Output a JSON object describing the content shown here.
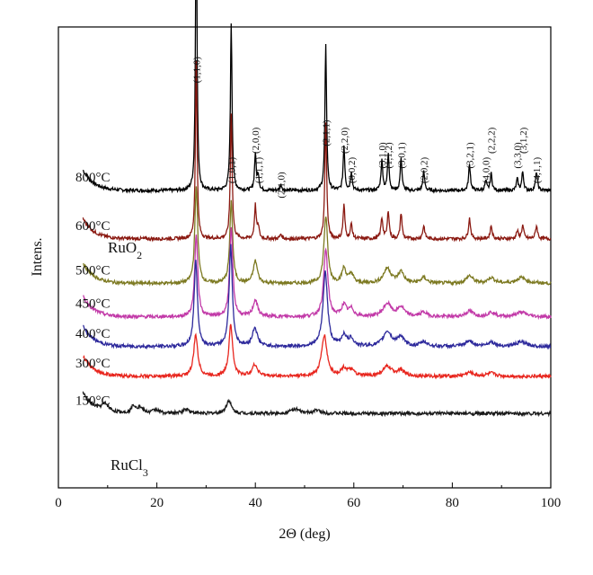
{
  "chart_data": {
    "type": "line",
    "xlabel": "2Θ (deg)",
    "ylabel": "Intens.",
    "xlim": [
      0,
      100
    ],
    "xticks": [
      0,
      20,
      40,
      60,
      80,
      100
    ],
    "xtick_labels": [
      "0",
      "20",
      "40",
      "60",
      "80",
      "100"
    ],
    "grid": false,
    "legend": "none",
    "series": [
      {
        "name": "800°C",
        "color": "#000000",
        "baseline": 8.0,
        "peaks": [
          [
            28.0,
            8.0,
            0.18
          ],
          [
            35.1,
            4.5,
            0.2
          ],
          [
            40.0,
            1.0,
            0.2
          ],
          [
            40.6,
            0.4,
            0.2
          ],
          [
            45.2,
            0.15,
            0.25
          ],
          [
            54.3,
            3.9,
            0.2
          ],
          [
            58.0,
            1.2,
            0.2
          ],
          [
            59.5,
            0.5,
            0.2
          ],
          [
            65.7,
            0.8,
            0.22
          ],
          [
            67.0,
            1.0,
            0.2
          ],
          [
            69.6,
            0.9,
            0.2
          ],
          [
            74.2,
            0.5,
            0.22
          ],
          [
            83.5,
            0.7,
            0.22
          ],
          [
            86.8,
            0.25,
            0.22
          ],
          [
            87.9,
            0.45,
            0.22
          ],
          [
            93.2,
            0.3,
            0.22
          ],
          [
            94.3,
            0.5,
            0.22
          ],
          [
            97.1,
            0.5,
            0.22
          ]
        ]
      },
      {
        "name": "600°C",
        "color": "#8b1a12",
        "baseline": 6.7,
        "peaks": [
          [
            28.0,
            4.8,
            0.2
          ],
          [
            35.1,
            3.4,
            0.22
          ],
          [
            40.0,
            0.9,
            0.22
          ],
          [
            40.6,
            0.3,
            0.22
          ],
          [
            45.2,
            0.12,
            0.25
          ],
          [
            54.3,
            3.1,
            0.22
          ],
          [
            58.0,
            0.9,
            0.22
          ],
          [
            59.5,
            0.4,
            0.22
          ],
          [
            65.7,
            0.55,
            0.25
          ],
          [
            67.0,
            0.75,
            0.22
          ],
          [
            69.6,
            0.7,
            0.22
          ],
          [
            74.2,
            0.35,
            0.25
          ],
          [
            83.5,
            0.55,
            0.25
          ],
          [
            87.9,
            0.35,
            0.25
          ],
          [
            93.2,
            0.2,
            0.25
          ],
          [
            94.3,
            0.35,
            0.25
          ],
          [
            97.1,
            0.35,
            0.25
          ]
        ]
      },
      {
        "name": "500°C",
        "color": "#7d7a22",
        "baseline": 5.5,
        "peaks": [
          [
            28.0,
            2.6,
            0.35
          ],
          [
            35.1,
            2.2,
            0.35
          ],
          [
            40.0,
            0.6,
            0.5
          ],
          [
            54.3,
            1.8,
            0.45
          ],
          [
            58.0,
            0.4,
            0.5
          ],
          [
            59.5,
            0.25,
            0.5
          ],
          [
            66.8,
            0.4,
            0.9
          ],
          [
            69.6,
            0.3,
            0.7
          ],
          [
            74.2,
            0.15,
            0.7
          ],
          [
            83.5,
            0.2,
            0.8
          ],
          [
            87.9,
            0.15,
            0.8
          ],
          [
            94.0,
            0.15,
            1.2
          ]
        ]
      },
      {
        "name": "450°C",
        "color": "#c23aa8",
        "baseline": 4.6,
        "peaks": [
          [
            28.0,
            2.2,
            0.38
          ],
          [
            35.1,
            2.4,
            0.38
          ],
          [
            40.0,
            0.45,
            0.55
          ],
          [
            54.3,
            1.8,
            0.5
          ],
          [
            58.0,
            0.3,
            0.6
          ],
          [
            59.5,
            0.2,
            0.6
          ],
          [
            66.8,
            0.35,
            1.0
          ],
          [
            69.6,
            0.25,
            0.8
          ],
          [
            74.2,
            0.12,
            0.8
          ],
          [
            83.5,
            0.15,
            0.9
          ],
          [
            87.9,
            0.12,
            0.9
          ],
          [
            94.0,
            0.12,
            1.3
          ]
        ]
      },
      {
        "name": "400°C",
        "color": "#2e2a9c",
        "baseline": 3.8,
        "peaks": [
          [
            27.9,
            2.3,
            0.4
          ],
          [
            35.0,
            2.7,
            0.4
          ],
          [
            39.9,
            0.5,
            0.6
          ],
          [
            54.2,
            2.0,
            0.55
          ],
          [
            58.0,
            0.3,
            0.6
          ],
          [
            59.5,
            0.2,
            0.6
          ],
          [
            66.8,
            0.4,
            1.0
          ],
          [
            69.5,
            0.25,
            0.8
          ],
          [
            74.2,
            0.12,
            0.8
          ],
          [
            83.5,
            0.15,
            0.9
          ],
          [
            87.9,
            0.12,
            0.9
          ],
          [
            94.0,
            0.12,
            1.3
          ]
        ]
      },
      {
        "name": "300°C",
        "color": "#e8261e",
        "baseline": 3.0,
        "peaks": [
          [
            27.9,
            1.1,
            0.5
          ],
          [
            35.0,
            1.4,
            0.45
          ],
          [
            39.9,
            0.3,
            0.7
          ],
          [
            54.0,
            1.1,
            0.65
          ],
          [
            58.0,
            0.2,
            0.7
          ],
          [
            59.5,
            0.15,
            0.7
          ],
          [
            66.8,
            0.25,
            1.1
          ],
          [
            69.5,
            0.15,
            0.9
          ],
          [
            83.5,
            0.1,
            1.0
          ],
          [
            87.9,
            0.08,
            1.0
          ]
        ]
      },
      {
        "name": "150°C",
        "color": "#1a1a1a",
        "baseline": 2.0,
        "peaks": [
          [
            9.5,
            0.2,
            0.9
          ],
          [
            15.3,
            0.2,
            0.6
          ],
          [
            16.6,
            0.15,
            0.6
          ],
          [
            19.8,
            0.1,
            0.8
          ],
          [
            26.0,
            0.12,
            0.8
          ],
          [
            34.6,
            0.35,
            0.6
          ],
          [
            48.0,
            0.12,
            1.0
          ],
          [
            52.5,
            0.08,
            1.0
          ]
        ]
      }
    ],
    "phase_labels": [
      "RuO2",
      "RuCl3"
    ],
    "peak_labels": [
      "(1,1,0)",
      "(1,0,1)",
      "(2,0,0)",
      "(1,1,1)",
      "(2,1,0)",
      "(2,1,1)",
      "(2,2,0)",
      "(0,0,2)",
      "(3,1,0)",
      "(1,1,2)",
      "(3,0,1)",
      "(2,0,2)",
      "(3,2,1)",
      "(4,0,0)",
      "(2,2,2)",
      "(3,3,0)",
      "(3,1,2)",
      "(4,1,1)"
    ],
    "peak_label_x": [
      28.0,
      35.1,
      40.0,
      40.6,
      45.2,
      54.3,
      58.0,
      59.5,
      65.7,
      67.0,
      69.6,
      74.2,
      83.5,
      86.8,
      87.9,
      93.2,
      94.3,
      97.1
    ],
    "peak_label_y": [
      11.6,
      8.9,
      9.7,
      8.9,
      8.5,
      9.9,
      9.7,
      8.9,
      9.3,
      9.3,
      9.3,
      8.9,
      9.3,
      8.9,
      9.7,
      9.3,
      9.7,
      8.9
    ]
  }
}
